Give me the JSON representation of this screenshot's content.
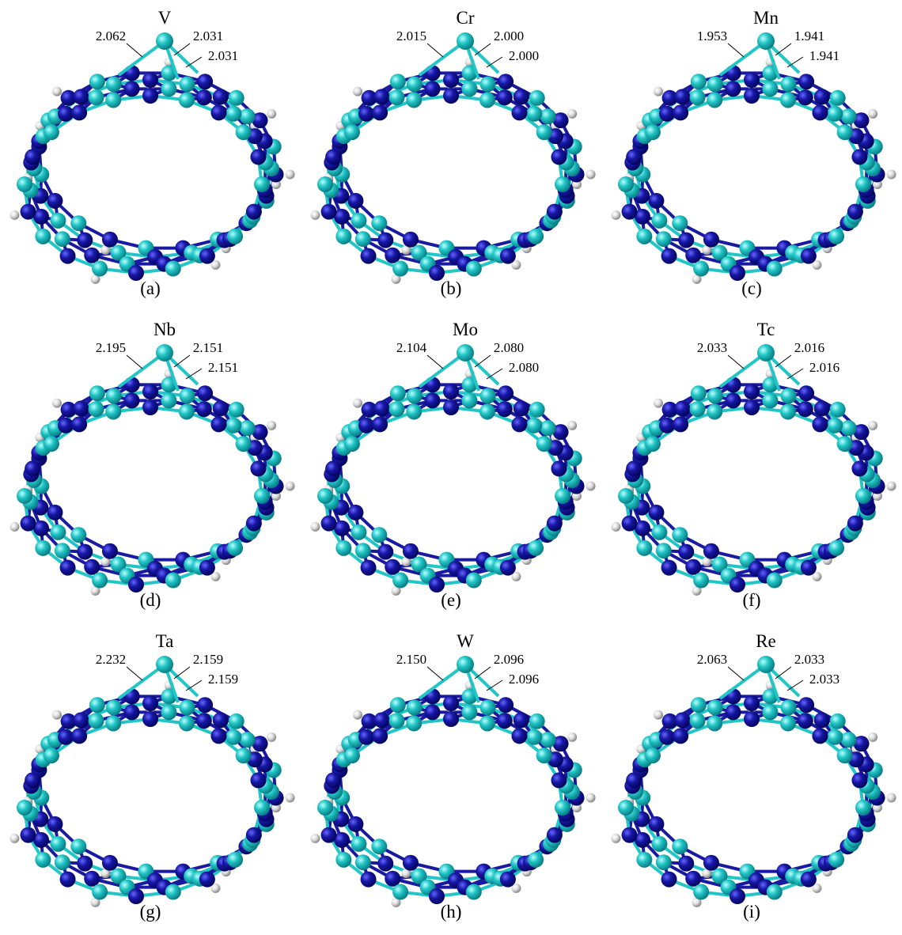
{
  "panels": [
    {
      "label": "(a)",
      "element": "V",
      "bonds": [
        "2.062",
        "2.031",
        "2.031"
      ]
    },
    {
      "label": "(b)",
      "element": "Cr",
      "bonds": [
        "2.015",
        "2.000",
        "2.000"
      ]
    },
    {
      "label": "(c)",
      "element": "Mn",
      "bonds": [
        "1.953",
        "1.941",
        "1.941"
      ]
    },
    {
      "label": "(d)",
      "element": "Nb",
      "bonds": [
        "2.195",
        "2.151",
        "2.151"
      ]
    },
    {
      "label": "(e)",
      "element": "Mo",
      "bonds": [
        "2.104",
        "2.080",
        "2.080"
      ]
    },
    {
      "label": "(f)",
      "element": "Tc",
      "bonds": [
        "2.033",
        "2.016",
        "2.016"
      ]
    },
    {
      "label": "(g)",
      "element": "Ta",
      "bonds": [
        "2.232",
        "2.159",
        "2.159"
      ]
    },
    {
      "label": "(h)",
      "element": "W",
      "bonds": [
        "2.150",
        "2.096",
        "2.096"
      ]
    },
    {
      "label": "(i)",
      "element": "Re",
      "bonds": [
        "2.063",
        "2.033",
        "2.033"
      ]
    }
  ]
}
